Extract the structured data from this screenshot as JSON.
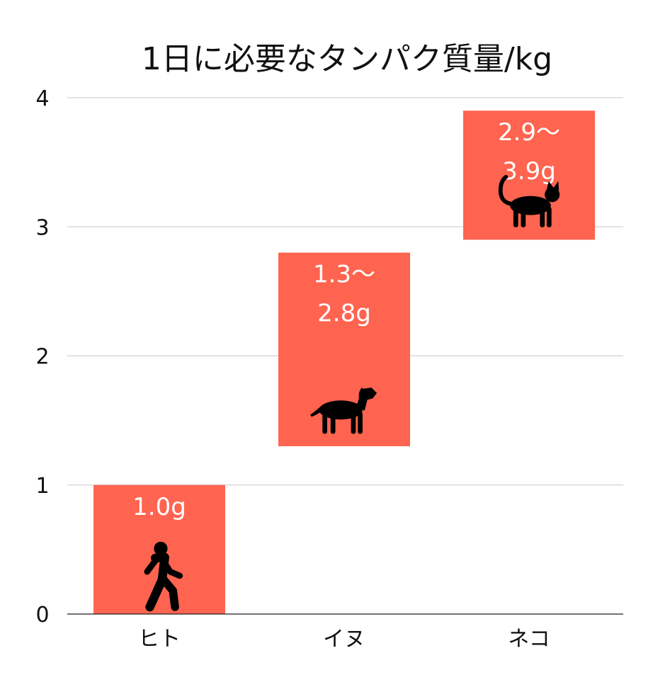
{
  "chart_data": {
    "type": "bar",
    "title": "1日に必要なタンパク質量/kg",
    "xlabel": "",
    "ylabel": "",
    "ylim": [
      0,
      4
    ],
    "yticks": [
      "0",
      "1",
      "2",
      "3",
      "4"
    ],
    "grid": true,
    "categories": [
      "ヒト",
      "イヌ",
      "ネコ"
    ],
    "ranges": [
      {
        "category": "ヒト",
        "low": 0,
        "high": 1.0,
        "label_lines": [
          "1.0g"
        ],
        "icon": "walking-person-icon"
      },
      {
        "category": "イヌ",
        "low": 1.3,
        "high": 2.8,
        "label_lines": [
          "1.3〜",
          "2.8g"
        ],
        "icon": "dog-icon"
      },
      {
        "category": "ネコ",
        "low": 2.9,
        "high": 3.9,
        "label_lines": [
          "2.9〜",
          "3.9g"
        ],
        "icon": "cat-icon"
      }
    ]
  },
  "colors": {
    "bar": "#ff6450",
    "grid": "#c8c8c8",
    "axis": "#222222",
    "text": "#111111",
    "label": "#ffffff",
    "icon": "#000000"
  }
}
